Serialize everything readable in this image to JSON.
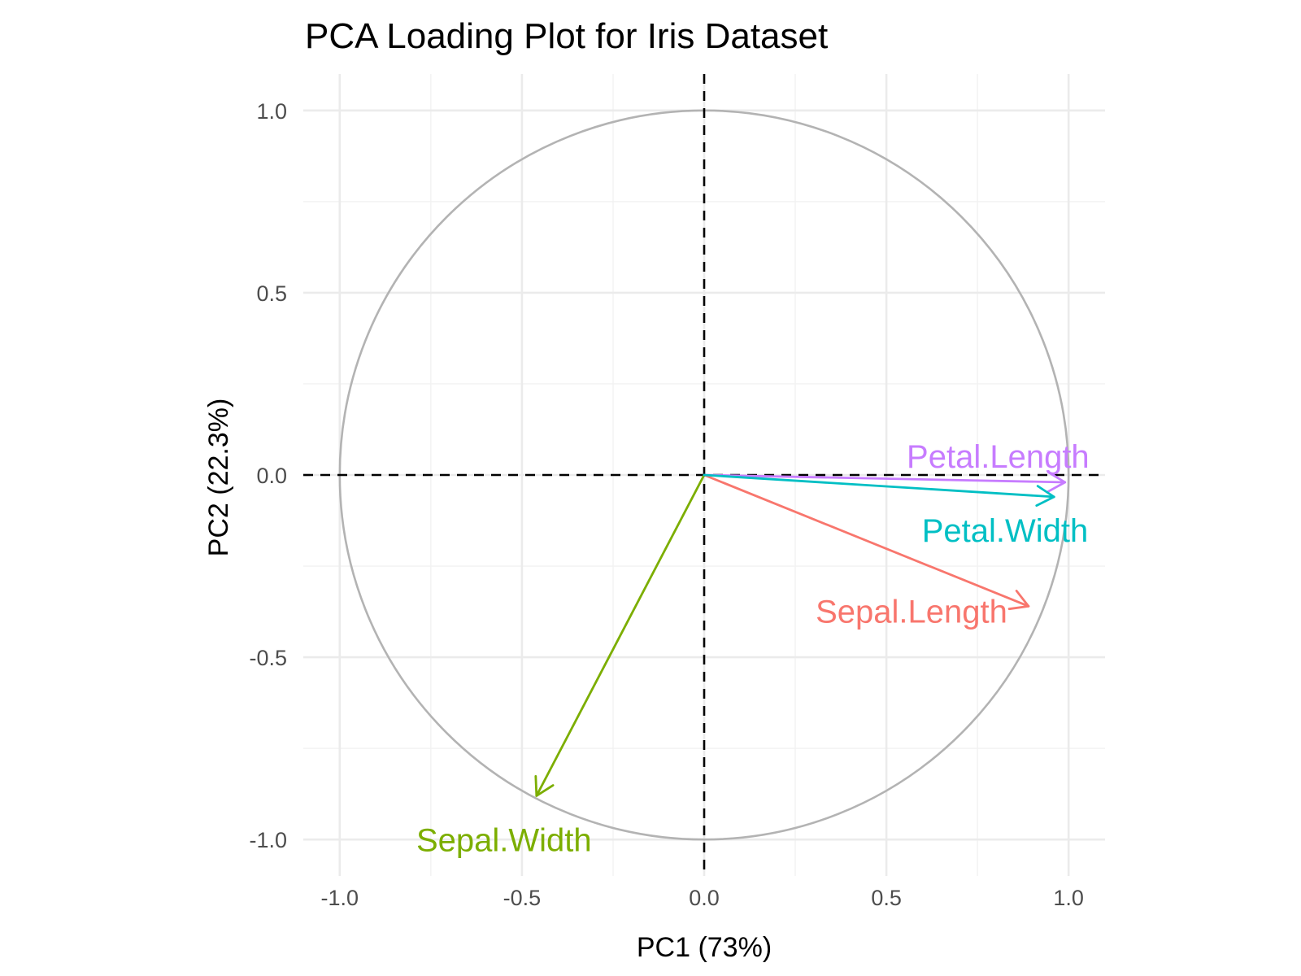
{
  "chart_data": {
    "type": "scatter",
    "title": "PCA Loading Plot for Iris Dataset",
    "xlabel": "PC1 (73%)",
    "ylabel": "PC2 (22.3%)",
    "xlim": [
      -1.1,
      1.1
    ],
    "ylim": [
      -1.1,
      1.1
    ],
    "x_ticks": [
      -1.0,
      -0.5,
      0.0,
      0.5,
      1.0
    ],
    "y_ticks": [
      -1.0,
      -0.5,
      0.0,
      0.5,
      1.0
    ],
    "x_tick_labels": [
      "-1.0",
      "-0.5",
      "0.0",
      "0.5",
      "1.0"
    ],
    "y_tick_labels": [
      "-1.0",
      "-0.5",
      "0.0",
      "0.5",
      "1.0"
    ],
    "grid": true,
    "unit_circle": true,
    "reference_lines": {
      "x": 0,
      "y": 0,
      "style": "dashed"
    },
    "series": [
      {
        "name": "Sepal.Length",
        "x": 0.89,
        "y": -0.36,
        "color": "#F8766D",
        "label_anchor": "end"
      },
      {
        "name": "Sepal.Width",
        "x": -0.46,
        "y": -0.88,
        "color": "#7CAE00",
        "label_anchor": "middle"
      },
      {
        "name": "Petal.Length",
        "x": 0.99,
        "y": -0.02,
        "color": "#C77CFF",
        "label_anchor": "end"
      },
      {
        "name": "Petal.Width",
        "x": 0.96,
        "y": -0.06,
        "color": "#00BFC4",
        "label_anchor": "end"
      }
    ]
  }
}
